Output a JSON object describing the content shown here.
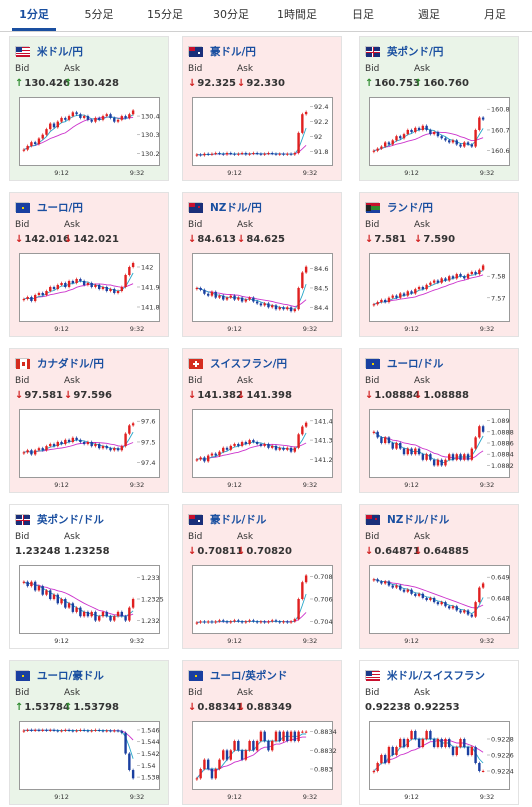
{
  "tabs": [
    {
      "label": "1分足",
      "active": true
    },
    {
      "label": "5分足",
      "active": false
    },
    {
      "label": "15分足",
      "active": false
    },
    {
      "label": "30分足",
      "active": false
    },
    {
      "label": "1時間足",
      "active": false
    },
    {
      "label": "日足",
      "active": false
    },
    {
      "label": "週足",
      "active": false
    },
    {
      "label": "月足",
      "active": false
    }
  ],
  "labels": {
    "bid": "Bid",
    "ask": "Ask"
  },
  "colors": {
    "up_bg": "#eaf4e8",
    "down_bg": "#fde9e9",
    "up_arrow": "#2e8b2e",
    "down_arrow": "#d02020",
    "link": "#1a4fa0",
    "candle_up": "#e02020",
    "candle_down": "#1a3fa0",
    "ma_fast": "#2aa7c9",
    "ma_slow": "#cc33cc"
  },
  "cards": [
    {
      "pair": "米ドル/円",
      "flag": "us-jp-flag",
      "trend": "up",
      "bid": "130.426",
      "ask": "130.428",
      "bid_dir": "up",
      "ask_dir": "up",
      "chart_data": {
        "type": "candlestick",
        "x_ticks": [
          "9:12",
          "9:32"
        ],
        "y_ticks": [
          "130.4",
          "130.3",
          "130.2"
        ],
        "y_ticks_data": [
          130.4,
          130.3,
          130.2
        ],
        "ylim": [
          130.17,
          130.47
        ],
        "closes": [
          130.22,
          130.24,
          130.26,
          130.25,
          130.28,
          130.3,
          130.33,
          130.36,
          130.34,
          130.37,
          130.39,
          130.38,
          130.4,
          130.42,
          130.41,
          130.39,
          130.4,
          130.38,
          130.37,
          130.39,
          130.38,
          130.4,
          130.41,
          130.39,
          130.37,
          130.38,
          130.4,
          130.39,
          130.41,
          130.43
        ]
      }
    },
    {
      "pair": "豪ドル/円",
      "flag": "au-jp-flag",
      "trend": "down",
      "bid": "92.325",
      "ask": "92.330",
      "bid_dir": "down",
      "ask_dir": "down",
      "chart_data": {
        "type": "candlestick",
        "x_ticks": [
          "9:12",
          "9:32"
        ],
        "y_ticks": [
          "92.4",
          "92.2",
          "92",
          "91.8"
        ],
        "y_ticks_data": [
          92.4,
          92.2,
          92.0,
          91.8
        ],
        "ylim": [
          91.7,
          92.45
        ],
        "closes": [
          91.76,
          91.75,
          91.77,
          91.76,
          91.77,
          91.78,
          91.77,
          91.76,
          91.78,
          91.77,
          91.76,
          91.77,
          91.78,
          91.76,
          91.77,
          91.78,
          91.77,
          91.76,
          91.77,
          91.78,
          91.77,
          91.76,
          91.77,
          91.76,
          91.77,
          91.76,
          91.78,
          92.05,
          92.3,
          92.33
        ]
      }
    },
    {
      "pair": "英ポンド/円",
      "flag": "gb-jp-flag",
      "trend": "up",
      "bid": "160.753",
      "ask": "160.760",
      "bid_dir": "up",
      "ask_dir": "up",
      "chart_data": {
        "type": "candlestick",
        "x_ticks": [
          "9:12",
          "9:32"
        ],
        "y_ticks": [
          "160.8",
          "160.7",
          "160.6"
        ],
        "y_ticks_data": [
          160.8,
          160.7,
          160.6
        ],
        "ylim": [
          160.56,
          160.83
        ],
        "closes": [
          160.6,
          160.61,
          160.62,
          160.64,
          160.63,
          160.65,
          160.67,
          160.66,
          160.68,
          160.7,
          160.69,
          160.71,
          160.7,
          160.72,
          160.7,
          160.68,
          160.69,
          160.67,
          160.66,
          160.65,
          160.64,
          160.65,
          160.63,
          160.62,
          160.64,
          160.63,
          160.62,
          160.7,
          160.76,
          160.75
        ]
      }
    },
    {
      "pair": "ユーロ/円",
      "flag": "eu-jp-flag",
      "trend": "down",
      "bid": "142.016",
      "ask": "142.021",
      "bid_dir": "down",
      "ask_dir": "down",
      "chart_data": {
        "type": "candlestick",
        "x_ticks": [
          "9:12",
          "9:32"
        ],
        "y_ticks": [
          "142",
          "141.9",
          "141.8"
        ],
        "y_ticks_data": [
          142.0,
          141.9,
          141.8
        ],
        "ylim": [
          141.76,
          142.04
        ],
        "closes": [
          141.84,
          141.85,
          141.83,
          141.86,
          141.87,
          141.86,
          141.88,
          141.9,
          141.89,
          141.91,
          141.92,
          141.9,
          141.93,
          141.92,
          141.94,
          141.93,
          141.91,
          141.92,
          141.9,
          141.91,
          141.89,
          141.9,
          141.88,
          141.89,
          141.87,
          141.88,
          141.9,
          141.96,
          142.0,
          142.02
        ]
      }
    },
    {
      "pair": "NZドル/円",
      "flag": "nz-jp-flag",
      "trend": "down",
      "bid": "84.613",
      "ask": "84.625",
      "bid_dir": "down",
      "ask_dir": "down",
      "chart_data": {
        "type": "candlestick",
        "x_ticks": [
          "9:12",
          "9:32"
        ],
        "y_ticks": [
          "84.6",
          "84.5",
          "84.4"
        ],
        "y_ticks_data": [
          84.6,
          84.5,
          84.4
        ],
        "ylim": [
          84.36,
          84.65
        ],
        "closes": [
          84.5,
          84.49,
          84.47,
          84.46,
          84.48,
          84.45,
          84.46,
          84.44,
          84.45,
          84.46,
          84.44,
          84.45,
          84.43,
          84.44,
          84.45,
          84.43,
          84.42,
          84.41,
          84.42,
          84.4,
          84.41,
          84.39,
          84.4,
          84.39,
          84.4,
          84.38,
          84.39,
          84.5,
          84.58,
          84.61
        ]
      }
    },
    {
      "pair": "ランド/円",
      "flag": "za-jp-flag",
      "trend": "down",
      "bid": "7.581",
      "ask": "7.590",
      "bid_dir": "down",
      "ask_dir": "down",
      "chart_data": {
        "type": "candlestick",
        "x_ticks": [
          "9:12",
          "9:32"
        ],
        "y_ticks": [
          "7.58",
          "7.57"
        ],
        "y_ticks_data": [
          7.58,
          7.57
        ],
        "ylim": [
          7.562,
          7.588
        ],
        "closes": [
          7.567,
          7.568,
          7.569,
          7.568,
          7.57,
          7.571,
          7.57,
          7.572,
          7.571,
          7.573,
          7.572,
          7.574,
          7.575,
          7.574,
          7.576,
          7.577,
          7.578,
          7.577,
          7.579,
          7.578,
          7.58,
          7.579,
          7.581,
          7.58,
          7.579,
          7.581,
          7.582,
          7.581,
          7.583,
          7.585
        ]
      }
    },
    {
      "pair": "カナダドル/円",
      "flag": "ca-jp-flag",
      "trend": "down",
      "bid": "97.581",
      "ask": "97.596",
      "bid_dir": "down",
      "ask_dir": "down",
      "chart_data": {
        "type": "candlestick",
        "x_ticks": [
          "9:12",
          "9:32"
        ],
        "y_ticks": [
          "97.6",
          "97.5",
          "97.4"
        ],
        "y_ticks_data": [
          97.6,
          97.5,
          97.4
        ],
        "ylim": [
          97.36,
          97.63
        ],
        "closes": [
          97.45,
          97.46,
          97.44,
          97.46,
          97.47,
          97.46,
          97.48,
          97.49,
          97.48,
          97.5,
          97.49,
          97.51,
          97.5,
          97.52,
          97.51,
          97.5,
          97.49,
          97.5,
          97.48,
          97.49,
          97.47,
          97.48,
          97.47,
          97.46,
          97.47,
          97.46,
          97.48,
          97.54,
          97.58,
          97.59
        ]
      }
    },
    {
      "pair": "スイスフラン/円",
      "flag": "ch-jp-flag",
      "trend": "down",
      "bid": "141.382",
      "ask": "141.398",
      "bid_dir": "down",
      "ask_dir": "down",
      "chart_data": {
        "type": "candlestick",
        "x_ticks": [
          "9:12",
          "9:32"
        ],
        "y_ticks": [
          "141.4",
          "141.3",
          "141.2"
        ],
        "y_ticks_data": [
          141.4,
          141.3,
          141.2
        ],
        "ylim": [
          141.14,
          141.43
        ],
        "closes": [
          141.2,
          141.21,
          141.19,
          141.22,
          141.23,
          141.22,
          141.24,
          141.26,
          141.25,
          141.27,
          141.28,
          141.27,
          141.29,
          141.28,
          141.3,
          141.29,
          141.28,
          141.27,
          141.28,
          141.26,
          141.27,
          141.25,
          141.26,
          141.25,
          141.26,
          141.24,
          141.26,
          141.33,
          141.37,
          141.39
        ]
      }
    },
    {
      "pair": "ユーロ/ドル",
      "flag": "eu-us-flag",
      "trend": "down",
      "bid": "1.08884",
      "ask": "1.08888",
      "bid_dir": "down",
      "ask_dir": "down",
      "chart_data": {
        "type": "candlestick",
        "x_ticks": [
          "9:12",
          "9:32"
        ],
        "y_ticks": [
          "1.089",
          "1.0888",
          "1.0886",
          "1.0884",
          "1.0882"
        ],
        "y_ticks_data": [
          1.089,
          1.0888,
          1.0886,
          1.0884,
          1.0882
        ],
        "ylim": [
          1.0881,
          1.0891
        ],
        "closes": [
          1.0888,
          1.0887,
          1.0886,
          1.0887,
          1.0886,
          1.0885,
          1.0886,
          1.0885,
          1.0884,
          1.0885,
          1.0884,
          1.0885,
          1.0884,
          1.0883,
          1.0884,
          1.0883,
          1.0882,
          1.0883,
          1.0882,
          1.0883,
          1.0884,
          1.0883,
          1.0884,
          1.0883,
          1.0884,
          1.0883,
          1.0885,
          1.0887,
          1.0889,
          1.0888
        ]
      }
    },
    {
      "pair": "英ポンド/ドル",
      "flag": "gb-us-flag",
      "trend": "flat",
      "bid": "1.23248",
      "ask": "1.23258",
      "bid_dir": "none",
      "ask_dir": "none",
      "chart_data": {
        "type": "candlestick",
        "x_ticks": [
          "9:12",
          "9:32"
        ],
        "y_ticks": [
          "1.233",
          "1.2325",
          "1.232"
        ],
        "y_ticks_data": [
          1.233,
          1.2325,
          1.232
        ],
        "ylim": [
          1.23185,
          1.23315
        ],
        "closes": [
          1.2329,
          1.2328,
          1.2329,
          1.2327,
          1.2328,
          1.2326,
          1.2327,
          1.2325,
          1.2326,
          1.2324,
          1.2325,
          1.2323,
          1.2324,
          1.2322,
          1.2323,
          1.2321,
          1.2322,
          1.2321,
          1.2322,
          1.232,
          1.2321,
          1.2322,
          1.2321,
          1.232,
          1.2321,
          1.2322,
          1.2321,
          1.232,
          1.2323,
          1.2325
        ]
      }
    },
    {
      "pair": "豪ドル/ドル",
      "flag": "au-us-flag",
      "trend": "down",
      "bid": "0.70811",
      "ask": "0.70820",
      "bid_dir": "down",
      "ask_dir": "down",
      "chart_data": {
        "type": "candlestick",
        "x_ticks": [
          "9:12",
          "9:32"
        ],
        "y_ticks": [
          "0.708",
          "0.706",
          "0.704"
        ],
        "y_ticks_data": [
          0.708,
          0.706,
          0.704
        ],
        "ylim": [
          0.7035,
          0.7085
        ],
        "closes": [
          0.7039,
          0.704,
          0.7039,
          0.704,
          0.7039,
          0.704,
          0.7041,
          0.704,
          0.7039,
          0.704,
          0.7041,
          0.704,
          0.7039,
          0.704,
          0.7041,
          0.704,
          0.7039,
          0.704,
          0.7039,
          0.704,
          0.7041,
          0.704,
          0.7039,
          0.704,
          0.7039,
          0.704,
          0.7042,
          0.706,
          0.7075,
          0.7081
        ]
      }
    },
    {
      "pair": "NZドル/ドル",
      "flag": "nz-us-flag",
      "trend": "down",
      "bid": "0.64871",
      "ask": "0.64885",
      "bid_dir": "down",
      "ask_dir": "down",
      "chart_data": {
        "type": "candlestick",
        "x_ticks": [
          "9:12",
          "9:32"
        ],
        "y_ticks": [
          "0.649",
          "0.648",
          "0.647"
        ],
        "y_ticks_data": [
          0.649,
          0.648,
          0.647
        ],
        "ylim": [
          0.6466,
          0.6493
        ],
        "closes": [
          0.6489,
          0.6488,
          0.6487,
          0.6488,
          0.6486,
          0.6485,
          0.6486,
          0.6484,
          0.6483,
          0.6484,
          0.6482,
          0.6481,
          0.6482,
          0.648,
          0.6479,
          0.648,
          0.6478,
          0.6477,
          0.6478,
          0.6476,
          0.6475,
          0.6476,
          0.6474,
          0.6473,
          0.6474,
          0.6472,
          0.6471,
          0.6478,
          0.6485,
          0.6487
        ]
      }
    },
    {
      "pair": "ユーロ/豪ドル",
      "flag": "eu-au-flag",
      "trend": "up",
      "bid": "1.53784",
      "ask": "1.53798",
      "bid_dir": "up",
      "ask_dir": "up",
      "chart_data": {
        "type": "candlestick",
        "x_ticks": [
          "9:12",
          "9:32"
        ],
        "y_ticks": [
          "1.546",
          "1.544",
          "1.542",
          "1.54",
          "1.538"
        ],
        "y_ticks_data": [
          1.546,
          1.544,
          1.542,
          1.54,
          1.538
        ],
        "ylim": [
          1.537,
          1.5465
        ],
        "closes": [
          1.5459,
          1.546,
          1.5459,
          1.546,
          1.5459,
          1.546,
          1.5459,
          1.546,
          1.5459,
          1.5458,
          1.5459,
          1.546,
          1.5459,
          1.5458,
          1.5459,
          1.546,
          1.5459,
          1.5458,
          1.5459,
          1.546,
          1.5459,
          1.5458,
          1.5459,
          1.5458,
          1.5459,
          1.5458,
          1.5455,
          1.542,
          1.5392,
          1.5378
        ]
      }
    },
    {
      "pair": "ユーロ/英ポンド",
      "flag": "eu-gb-flag",
      "trend": "down",
      "bid": "0.88341",
      "ask": "0.88349",
      "bid_dir": "down",
      "ask_dir": "down",
      "chart_data": {
        "type": "candlestick",
        "x_ticks": [
          "9:12",
          "9:32"
        ],
        "y_ticks": [
          "0.8834",
          "0.8832",
          "0.883"
        ],
        "y_ticks_data": [
          0.8834,
          0.8832,
          0.883
        ],
        "ylim": [
          0.88285,
          0.88345
        ],
        "closes": [
          0.8829,
          0.883,
          0.8831,
          0.883,
          0.8829,
          0.883,
          0.8831,
          0.8832,
          0.8831,
          0.8832,
          0.8833,
          0.8832,
          0.8831,
          0.8832,
          0.8833,
          0.8832,
          0.8833,
          0.8834,
          0.8833,
          0.8832,
          0.8833,
          0.8834,
          0.8833,
          0.8834,
          0.8833,
          0.8834,
          0.8833,
          0.8834,
          0.8834,
          0.8834
        ]
      }
    },
    {
      "pair": "米ドル/スイスフラン",
      "flag": "us-ch-flag",
      "trend": "flat",
      "bid": "0.92238",
      "ask": "0.92253",
      "bid_dir": "none",
      "ask_dir": "none",
      "chart_data": {
        "type": "candlestick",
        "x_ticks": [
          "9:12",
          "9:32"
        ],
        "y_ticks": [
          "0.9228",
          "0.9226",
          "0.9224"
        ],
        "y_ticks_data": [
          0.9228,
          0.9226,
          0.9224
        ],
        "ylim": [
          0.92225,
          0.92295
        ],
        "closes": [
          0.9224,
          0.9225,
          0.9226,
          0.9225,
          0.9227,
          0.9226,
          0.9227,
          0.9228,
          0.9227,
          0.9228,
          0.9229,
          0.9228,
          0.9227,
          0.9228,
          0.9229,
          0.9228,
          0.9227,
          0.9228,
          0.9227,
          0.9228,
          0.9227,
          0.9226,
          0.9227,
          0.9228,
          0.9227,
          0.9226,
          0.9227,
          0.9225,
          0.9224,
          0.9224
        ]
      }
    }
  ]
}
